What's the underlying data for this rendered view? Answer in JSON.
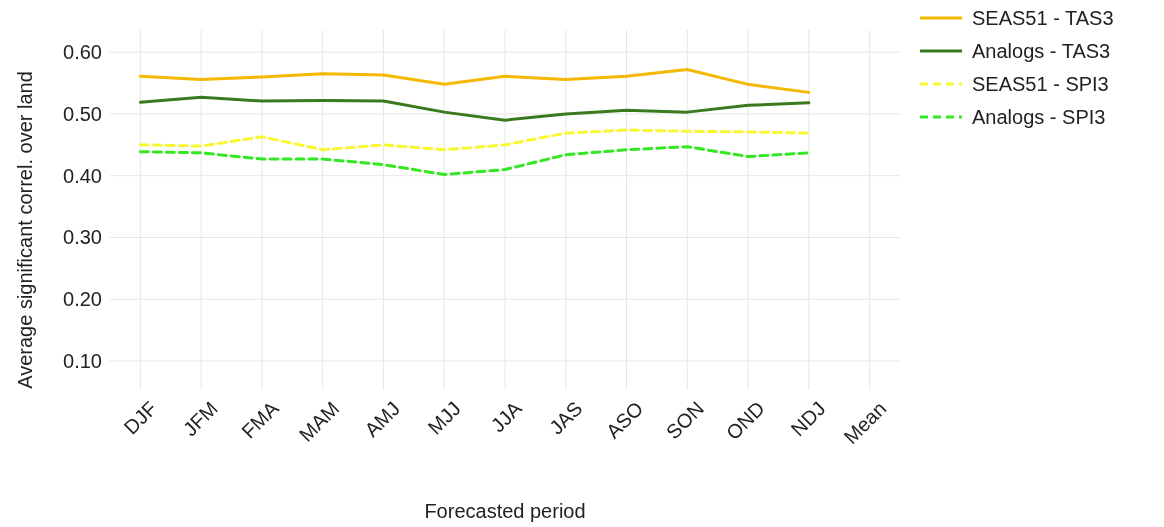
{
  "chart_data": {
    "type": "line",
    "xlabel": "Forecasted period",
    "ylabel": "Average significant correl. over land",
    "categories": [
      "DJF",
      "JFM",
      "FMA",
      "MAM",
      "AMJ",
      "MJJ",
      "JJA",
      "JAS",
      "ASO",
      "SON",
      "OND",
      "NDJ",
      "Mean"
    ],
    "series": [
      {
        "name": "SEAS51 - TAS3",
        "color": "#f5b800",
        "line_style": "solid",
        "values": [
          0.561,
          0.556,
          0.56,
          0.565,
          0.563,
          0.548,
          0.561,
          0.556,
          0.561,
          0.572,
          0.548,
          0.535,
          null
        ]
      },
      {
        "name": "Analogs - TAS3",
        "color": "#3a7a1e",
        "line_style": "solid",
        "values": [
          0.519,
          0.527,
          0.521,
          0.522,
          0.521,
          0.503,
          0.49,
          0.5,
          0.506,
          0.503,
          0.514,
          0.518,
          null
        ]
      },
      {
        "name": "SEAS51 - SPI3",
        "color": "#f8f832",
        "line_style": "dashed",
        "values": [
          0.45,
          0.448,
          0.463,
          0.442,
          0.45,
          0.442,
          0.45,
          0.469,
          0.474,
          0.472,
          0.471,
          0.469,
          null
        ]
      },
      {
        "name": "Analogs - SPI3",
        "color": "#33e822",
        "line_style": "dashed",
        "values": [
          0.439,
          0.437,
          0.427,
          0.427,
          0.418,
          0.402,
          0.41,
          0.434,
          0.442,
          0.447,
          0.431,
          0.437,
          null
        ]
      }
    ],
    "ylim": [
      0.053,
      0.636
    ],
    "yticks": [
      {
        "value": 0.1,
        "label": "0.10"
      },
      {
        "value": 0.2,
        "label": "0.20"
      },
      {
        "value": 0.3,
        "label": "0.30"
      },
      {
        "value": 0.4,
        "label": "0.40"
      },
      {
        "value": 0.5,
        "label": "0.50"
      },
      {
        "value": 0.6,
        "label": "0.60"
      }
    ],
    "grid": true,
    "legend": "top right"
  }
}
